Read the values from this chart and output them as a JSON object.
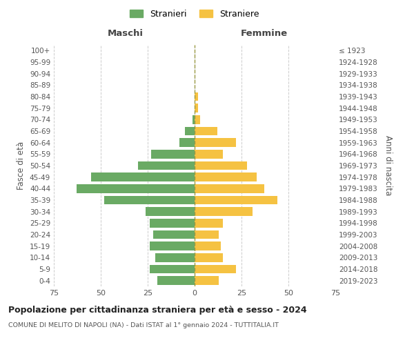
{
  "age_groups": [
    "0-4",
    "5-9",
    "10-14",
    "15-19",
    "20-24",
    "25-29",
    "30-34",
    "35-39",
    "40-44",
    "45-49",
    "50-54",
    "55-59",
    "60-64",
    "65-69",
    "70-74",
    "75-79",
    "80-84",
    "85-89",
    "90-94",
    "95-99",
    "100+"
  ],
  "birth_years": [
    "2019-2023",
    "2014-2018",
    "2009-2013",
    "2004-2008",
    "1999-2003",
    "1994-1998",
    "1989-1993",
    "1984-1988",
    "1979-1983",
    "1974-1978",
    "1969-1973",
    "1964-1968",
    "1959-1963",
    "1954-1958",
    "1949-1953",
    "1944-1948",
    "1939-1943",
    "1934-1938",
    "1929-1933",
    "1924-1928",
    "≤ 1923"
  ],
  "males": [
    20,
    24,
    21,
    24,
    22,
    24,
    26,
    48,
    63,
    55,
    30,
    23,
    8,
    5,
    1,
    0,
    0,
    0,
    0,
    0,
    0
  ],
  "females": [
    13,
    22,
    15,
    14,
    13,
    15,
    31,
    44,
    37,
    33,
    28,
    15,
    22,
    12,
    3,
    2,
    2,
    0,
    0,
    0,
    0
  ],
  "male_color": "#6aaa64",
  "female_color": "#f5c242",
  "title": "Popolazione per cittadinanza straniera per età e sesso - 2024",
  "subtitle": "COMUNE DI MELITO DI NAPOLI (NA) - Dati ISTAT al 1° gennaio 2024 - TUTTITALIA.IT",
  "legend_male": "Stranieri",
  "legend_female": "Straniere",
  "xlabel_left": "Maschi",
  "xlabel_right": "Femmine",
  "ylabel_left": "Fasce di età",
  "ylabel_right": "Anni di nascita",
  "xlim": 75,
  "background_color": "#ffffff",
  "grid_color": "#cccccc"
}
